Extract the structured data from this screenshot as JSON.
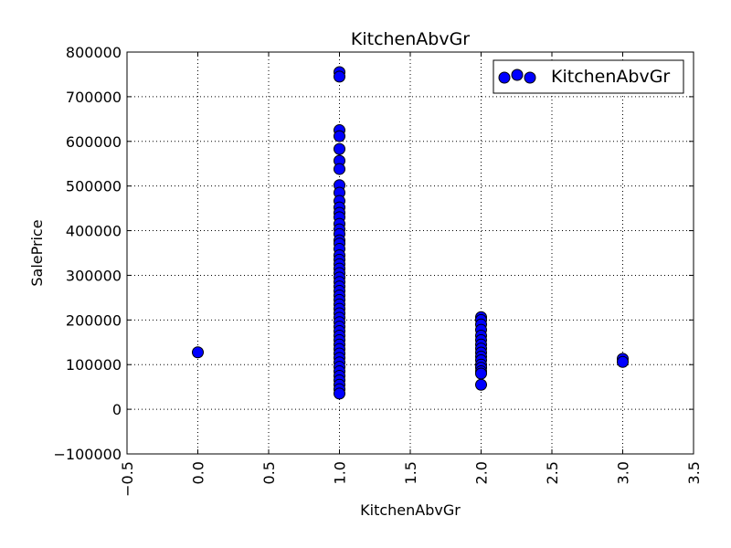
{
  "chart_data": {
    "type": "scatter",
    "title": "KitchenAbvGr",
    "xlabel": "KitchenAbvGr",
    "ylabel": "SalePrice",
    "xlim": [
      -0.5,
      3.5
    ],
    "ylim": [
      -100000,
      800000
    ],
    "x_ticks": [
      -0.5,
      0.0,
      0.5,
      1.0,
      1.5,
      2.0,
      2.5,
      3.0,
      3.5
    ],
    "x_tick_labels": [
      "−0.5",
      "0.0",
      "0.5",
      "1.0",
      "1.5",
      "2.0",
      "2.5",
      "3.0",
      "3.5"
    ],
    "y_ticks": [
      -100000,
      0,
      100000,
      200000,
      300000,
      400000,
      500000,
      600000,
      700000,
      800000
    ],
    "y_tick_labels": [
      "−100000",
      "0",
      "100000",
      "200000",
      "300000",
      "400000",
      "500000",
      "600000",
      "700000",
      "800000"
    ],
    "grid": true,
    "legend_position": "top-right",
    "marker_color": "#0000ff",
    "marker_edge_color": "#000000",
    "series": [
      {
        "name": "KitchenAbvGr",
        "points": [
          {
            "x": 0,
            "y": 127500
          },
          {
            "x": 1,
            "y": 755000
          },
          {
            "x": 1,
            "y": 745000
          },
          {
            "x": 1,
            "y": 625000
          },
          {
            "x": 1,
            "y": 611657
          },
          {
            "x": 1,
            "y": 582933
          },
          {
            "x": 1,
            "y": 556581
          },
          {
            "x": 1,
            "y": 538000
          },
          {
            "x": 1,
            "y": 501837
          },
          {
            "x": 1,
            "y": 485000
          },
          {
            "x": 1,
            "y": 466500
          },
          {
            "x": 1,
            "y": 451950
          },
          {
            "x": 1,
            "y": 440000
          },
          {
            "x": 1,
            "y": 430000
          },
          {
            "x": 1,
            "y": 415298
          },
          {
            "x": 1,
            "y": 402861
          },
          {
            "x": 1,
            "y": 392500
          },
          {
            "x": 1,
            "y": 378500
          },
          {
            "x": 1,
            "y": 370878
          },
          {
            "x": 1,
            "y": 359100
          },
          {
            "x": 1,
            "y": 345000
          },
          {
            "x": 1,
            "y": 335000
          },
          {
            "x": 1,
            "y": 325000
          },
          {
            "x": 1,
            "y": 315000
          },
          {
            "x": 1,
            "y": 305000
          },
          {
            "x": 1,
            "y": 295000
          },
          {
            "x": 1,
            "y": 285000
          },
          {
            "x": 1,
            "y": 275000
          },
          {
            "x": 1,
            "y": 265000
          },
          {
            "x": 1,
            "y": 255000
          },
          {
            "x": 1,
            "y": 245000
          },
          {
            "x": 1,
            "y": 235000
          },
          {
            "x": 1,
            "y": 225000
          },
          {
            "x": 1,
            "y": 215000
          },
          {
            "x": 1,
            "y": 205000
          },
          {
            "x": 1,
            "y": 195000
          },
          {
            "x": 1,
            "y": 185000
          },
          {
            "x": 1,
            "y": 175000
          },
          {
            "x": 1,
            "y": 165000
          },
          {
            "x": 1,
            "y": 155000
          },
          {
            "x": 1,
            "y": 145000
          },
          {
            "x": 1,
            "y": 135000
          },
          {
            "x": 1,
            "y": 125000
          },
          {
            "x": 1,
            "y": 115000
          },
          {
            "x": 1,
            "y": 105000
          },
          {
            "x": 1,
            "y": 95000
          },
          {
            "x": 1,
            "y": 85000
          },
          {
            "x": 1,
            "y": 75000
          },
          {
            "x": 1,
            "y": 65000
          },
          {
            "x": 1,
            "y": 55000
          },
          {
            "x": 1,
            "y": 45000
          },
          {
            "x": 1,
            "y": 35311
          },
          {
            "x": 2,
            "y": 206300
          },
          {
            "x": 2,
            "y": 200000
          },
          {
            "x": 2,
            "y": 190000
          },
          {
            "x": 2,
            "y": 178000
          },
          {
            "x": 2,
            "y": 165000
          },
          {
            "x": 2,
            "y": 155000
          },
          {
            "x": 2,
            "y": 145000
          },
          {
            "x": 2,
            "y": 136000
          },
          {
            "x": 2,
            "y": 127000
          },
          {
            "x": 2,
            "y": 118000
          },
          {
            "x": 2,
            "y": 110000
          },
          {
            "x": 2,
            "y": 100000
          },
          {
            "x": 2,
            "y": 93000
          },
          {
            "x": 2,
            "y": 85000
          },
          {
            "x": 2,
            "y": 80000
          },
          {
            "x": 2,
            "y": 55000
          },
          {
            "x": 3,
            "y": 113000
          },
          {
            "x": 3,
            "y": 106000
          }
        ]
      }
    ]
  }
}
